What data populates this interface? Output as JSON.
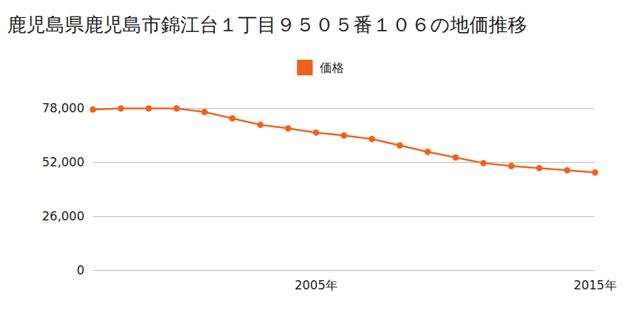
{
  "chart_data": {
    "type": "line",
    "title": "鹿児島県鹿児島市錦江台１丁目９５０５番１０６の地価推移",
    "x": [
      1997,
      1998,
      1999,
      2000,
      2001,
      2002,
      2003,
      2004,
      2005,
      2006,
      2007,
      2008,
      2009,
      2010,
      2011,
      2012,
      2013,
      2014,
      2015
    ],
    "series": [
      {
        "name": "価格",
        "color": "#f0621b",
        "marker": "circle",
        "values": [
          77500,
          78000,
          78000,
          78000,
          76300,
          73200,
          70100,
          68400,
          66400,
          65000,
          63300,
          60200,
          57100,
          54400,
          51700,
          50300,
          49300,
          48200,
          47200
        ]
      }
    ],
    "xlim": [
      1997,
      2015
    ],
    "xticks": [
      {
        "value": 2005,
        "label": "2005年"
      },
      {
        "value": 2015,
        "label": "2015年"
      }
    ],
    "ylim": [
      0,
      78000
    ],
    "yticks": [
      0,
      {
        "value": 26000,
        "label": "26,000"
      },
      {
        "value": 52000,
        "label": "52,000"
      },
      {
        "value": 78000,
        "label": "78,000"
      }
    ],
    "grid": true,
    "legend": "top"
  }
}
